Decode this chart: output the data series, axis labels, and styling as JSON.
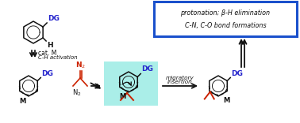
{
  "bg_color": "#ffffff",
  "box_color": "#1a50cc",
  "cyan_fill": "#aaeee8",
  "dg_color": "#2222cc",
  "red_color": "#cc2200",
  "black": "#111111",
  "text_cat_m": "cat. M",
  "text_ch_act": "C-H activation",
  "text_mig_ins": "migratory\ninsertion",
  "text_box_line1": "protonation; β-H elimination",
  "text_box_line2": "C-N, C-O bond formations",
  "dg_label": "DG",
  "m_label": "M",
  "n2_label": "N₂",
  "h_label": "H",
  "figw": 3.78,
  "figh": 1.56,
  "dpi": 100
}
